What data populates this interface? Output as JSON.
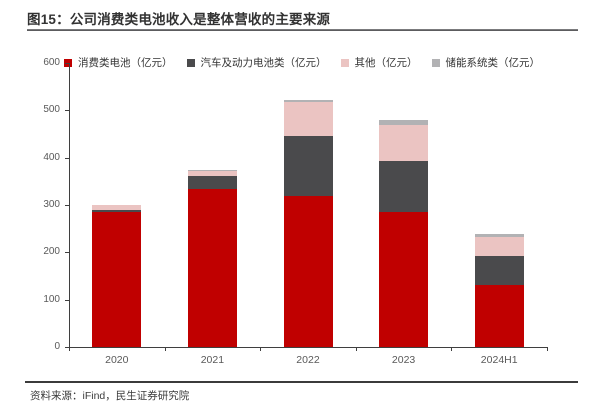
{
  "figure": {
    "title": "图15：公司消费类电池收入是整体营收的主要来源"
  },
  "footer": {
    "source": "资料来源：iFind，民生证券研究院"
  },
  "colors": {
    "consumer_red": "#c00000",
    "auto_dark_gray": "#4a4a4c",
    "other_pink": "#ebc4c2",
    "storage_gray": "#b2b2b4",
    "axis": "#3f3f3f",
    "tick_label": "#595959"
  },
  "chart_data": {
    "type": "bar",
    "stacked": true,
    "title": "图15：公司消费类电池收入是整体营收的主要来源",
    "categories": [
      "2020",
      "2021",
      "2022",
      "2023",
      "2024H1"
    ],
    "series": [
      {
        "name": "消费类电池（亿元）",
        "color": "#c00000",
        "values": [
          285,
          334,
          318,
          285,
          131
        ]
      },
      {
        "name": "汽车及动力电池类（亿元）",
        "color": "#4a4a4c",
        "values": [
          5,
          27,
          128,
          108,
          62
        ]
      },
      {
        "name": "其他（亿元）",
        "color": "#ebc4c2",
        "values": [
          9,
          11,
          71,
          75,
          40
        ]
      },
      {
        "name": "储能系统类（亿元）",
        "color": "#b2b2b4",
        "values": [
          0,
          2,
          5,
          11,
          6
        ]
      }
    ],
    "totals": [
      299,
      374,
      522,
      479,
      239
    ],
    "xlabel": "",
    "ylabel": "",
    "ylim": [
      0,
      600
    ],
    "yticks": [
      0,
      100,
      200,
      300,
      400,
      500,
      600
    ],
    "grid": false,
    "legend_position": "top"
  }
}
